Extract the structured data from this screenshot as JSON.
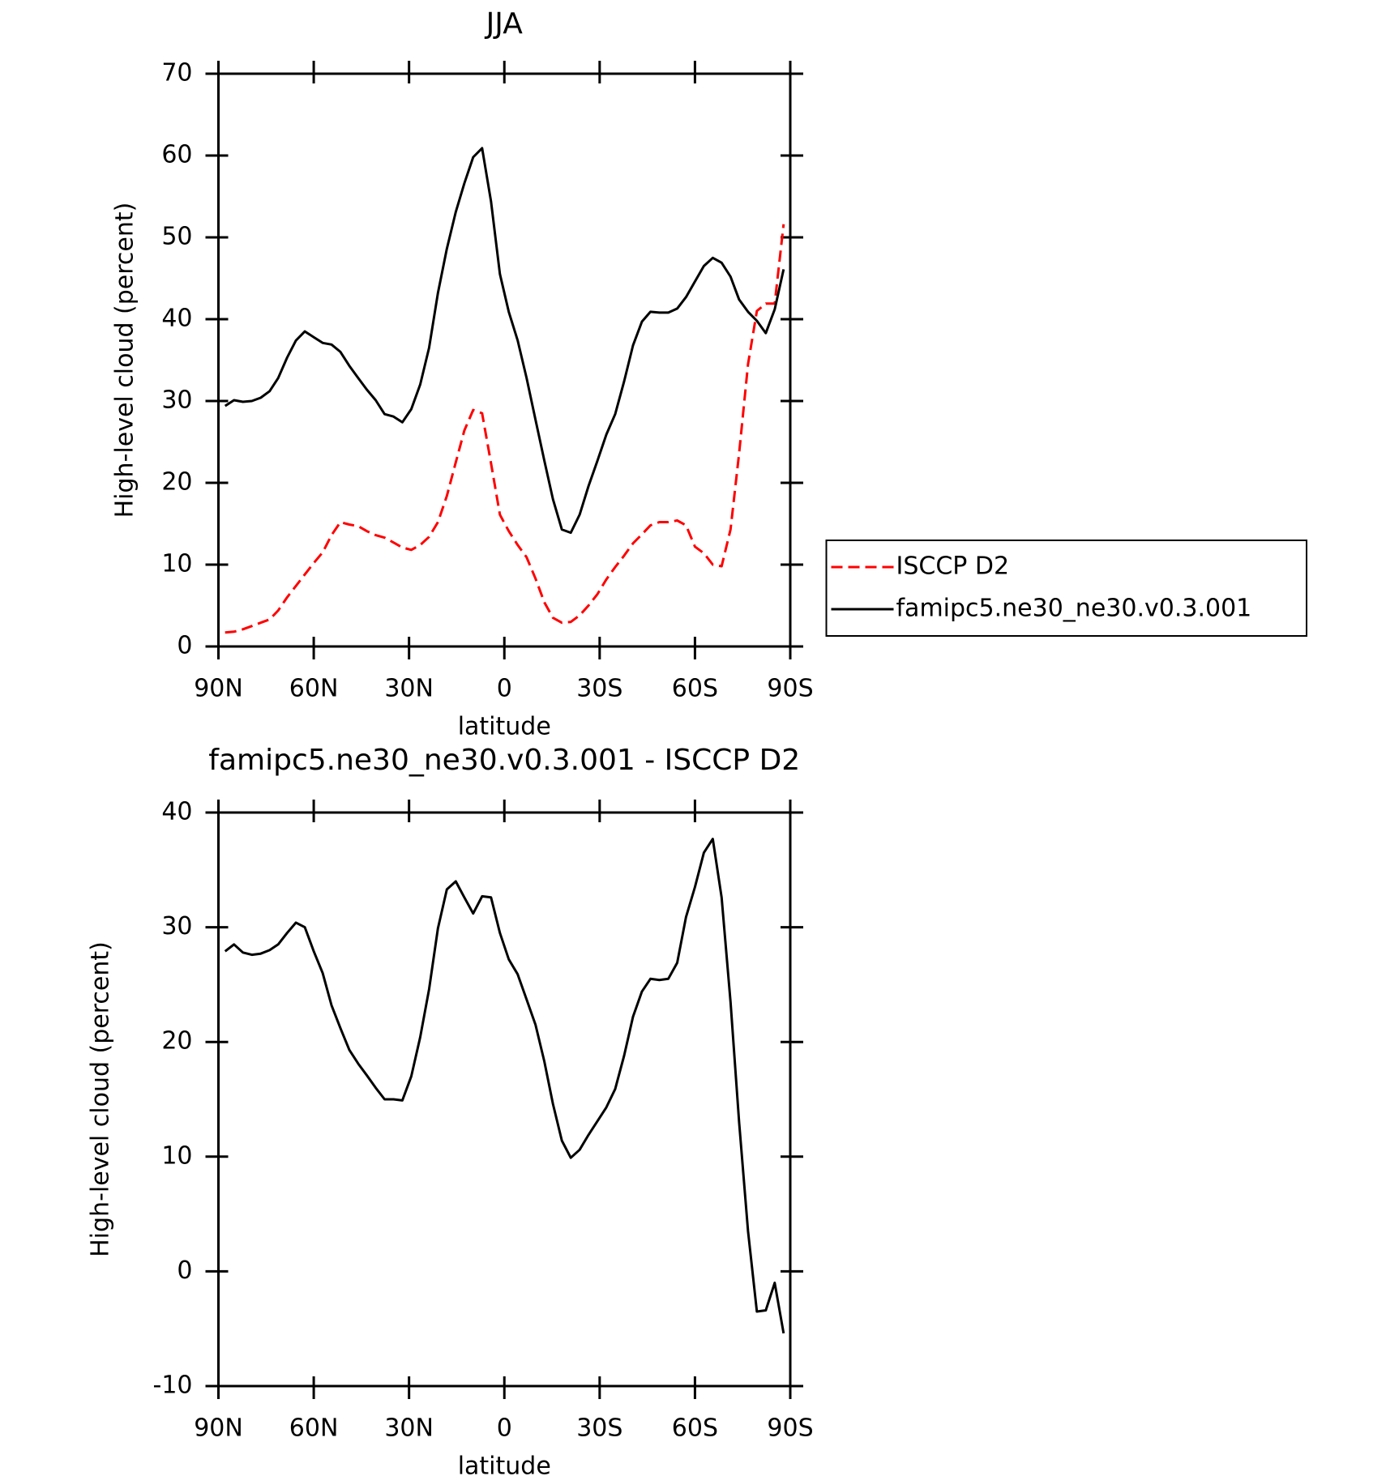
{
  "chart_data": [
    {
      "type": "line",
      "title": "JJA",
      "xlabel": "latitude",
      "ylabel": "High-level cloud (percent)",
      "x": [
        87.9,
        85.1,
        82.3,
        79.5,
        76.7,
        73.9,
        71.2,
        68.4,
        65.6,
        62.8,
        60.0,
        57.2,
        54.4,
        51.6,
        48.8,
        46.0,
        43.3,
        40.5,
        37.7,
        34.9,
        32.1,
        29.3,
        26.5,
        23.7,
        20.9,
        18.1,
        15.3,
        12.6,
        9.8,
        7.0,
        4.2,
        1.4,
        -1.4,
        -4.2,
        -7.0,
        -9.8,
        -12.6,
        -15.3,
        -18.1,
        -20.9,
        -23.7,
        -26.5,
        -29.3,
        -32.1,
        -34.9,
        -37.7,
        -40.5,
        -43.3,
        -46.0,
        -48.8,
        -51.6,
        -54.4,
        -57.2,
        -60.0,
        -62.8,
        -65.6,
        -68.4,
        -71.2,
        -73.9,
        -76.7,
        -79.5,
        -82.3,
        -85.1,
        -87.9
      ],
      "series": [
        {
          "name": "ISCCP D2",
          "color": "#ff0000",
          "style": "dashed",
          "values": [
            1.7,
            1.8,
            2.1,
            2.5,
            2.9,
            3.3,
            4.4,
            6.0,
            7.4,
            8.8,
            10.2,
            11.5,
            13.6,
            15.2,
            14.9,
            14.7,
            14.1,
            13.6,
            13.3,
            12.7,
            12.1,
            11.8,
            12.4,
            13.4,
            15.2,
            18.4,
            22.5,
            26.4,
            28.9,
            28.5,
            22.4,
            16.1,
            14.1,
            12.4,
            10.9,
            8.3,
            5.4,
            3.5,
            2.9,
            3.0,
            3.8,
            5.0,
            6.4,
            8.2,
            9.7,
            11.1,
            12.6,
            13.7,
            14.8,
            15.2,
            15.2,
            15.4,
            14.8,
            12.2,
            11.4,
            10.0,
            9.8,
            14.3,
            23.6,
            34.5,
            41.0,
            41.9,
            41.9,
            51.6
          ]
        },
        {
          "name": "famipc5.ne30_ne30.v0.3.001",
          "color": "#000000",
          "style": "solid",
          "values": [
            29.4,
            30.1,
            29.9,
            30.0,
            30.4,
            31.2,
            32.8,
            35.3,
            37.4,
            38.5,
            37.8,
            37.1,
            36.9,
            36.0,
            34.3,
            32.8,
            31.4,
            30.1,
            28.4,
            28.1,
            27.4,
            29.0,
            32.0,
            36.5,
            43.2,
            48.6,
            53.1,
            56.6,
            59.8,
            60.9,
            54.4,
            45.5,
            40.9,
            37.4,
            32.8,
            27.7,
            22.7,
            18.0,
            14.3,
            13.9,
            16.1,
            19.6,
            22.7,
            25.9,
            28.4,
            32.4,
            36.8,
            39.7,
            40.9,
            40.8,
            40.8,
            41.3,
            42.7,
            44.6,
            46.5,
            47.5,
            46.9,
            45.2,
            42.4,
            40.9,
            39.8,
            38.3,
            41.2,
            46.1
          ]
        }
      ],
      "xlim": [
        90,
        -90
      ],
      "xticks": [
        {
          "value": 90,
          "label": "90N"
        },
        {
          "value": 60,
          "label": "60N"
        },
        {
          "value": 30,
          "label": "30N"
        },
        0,
        {
          "value": -30,
          "label": "30S"
        },
        {
          "value": -60,
          "label": "60S"
        },
        {
          "value": -90,
          "label": "90S"
        }
      ],
      "ylim": [
        0,
        70
      ],
      "yticks": [
        0,
        10,
        20,
        30,
        40,
        50,
        60,
        70
      ],
      "legend": "right"
    },
    {
      "type": "line",
      "title": "famipc5.ne30_ne30.v0.3.001 - ISCCP D2",
      "xlabel": "latitude",
      "ylabel": "High-level cloud (percent)",
      "x": [
        87.9,
        85.1,
        82.3,
        79.5,
        76.7,
        73.9,
        71.2,
        68.4,
        65.6,
        62.8,
        60.0,
        57.2,
        54.4,
        51.6,
        48.8,
        46.0,
        43.3,
        40.5,
        37.7,
        34.9,
        32.1,
        29.3,
        26.5,
        23.7,
        20.9,
        18.1,
        15.3,
        12.6,
        9.8,
        7.0,
        4.2,
        1.4,
        -1.4,
        -4.2,
        -7.0,
        -9.8,
        -12.6,
        -15.3,
        -18.1,
        -20.9,
        -23.7,
        -26.5,
        -29.3,
        -32.1,
        -34.9,
        -37.7,
        -40.5,
        -43.3,
        -46.0,
        -48.8,
        -51.6,
        -54.4,
        -57.2,
        -60.0,
        -62.8,
        -65.6,
        -68.4,
        -71.2,
        -73.9,
        -76.7,
        -79.5,
        -82.3,
        -85.1,
        -87.9
      ],
      "series": [
        {
          "color": "#000000",
          "style": "solid",
          "values": [
            27.9,
            28.5,
            27.8,
            27.6,
            27.7,
            28.0,
            28.5,
            29.5,
            30.4,
            30.0,
            27.9,
            26.0,
            23.2,
            21.2,
            19.3,
            18.1,
            17.1,
            16.0,
            15.0,
            15.0,
            14.9,
            17.0,
            20.4,
            24.6,
            29.9,
            33.3,
            34.0,
            32.6,
            31.2,
            32.7,
            32.6,
            29.5,
            27.2,
            25.9,
            23.7,
            21.5,
            18.3,
            14.6,
            11.4,
            9.9,
            10.6,
            11.9,
            13.1,
            14.3,
            15.9,
            18.8,
            22.2,
            24.4,
            25.5,
            25.4,
            25.5,
            26.9,
            30.9,
            33.5,
            36.5,
            37.7,
            32.6,
            23.5,
            13.0,
            3.5,
            -3.5,
            -3.4,
            -1.0,
            -5.4
          ]
        }
      ],
      "xlim": [
        90,
        -90
      ],
      "xticks": [
        {
          "value": 90,
          "label": "90N"
        },
        {
          "value": 60,
          "label": "60N"
        },
        {
          "value": 30,
          "label": "30N"
        },
        0,
        {
          "value": -30,
          "label": "30S"
        },
        {
          "value": -60,
          "label": "60S"
        },
        {
          "value": -90,
          "label": "90S"
        }
      ],
      "ylim": [
        -10,
        40
      ],
      "yticks": [
        -10,
        0,
        10,
        20,
        30,
        40
      ]
    }
  ]
}
